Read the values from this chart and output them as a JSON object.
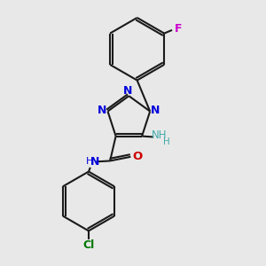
{
  "bg_color": "#e8e8e8",
  "bond_color": "#1a1a1a",
  "N_color": "#0000dd",
  "O_color": "#cc0000",
  "F_color": "#cc00cc",
  "Cl_color": "#007700",
  "NH_color": "#44aaaa",
  "lw": 1.5,
  "xlim": [
    0,
    3
  ],
  "ylim": [
    0,
    3.2
  ]
}
